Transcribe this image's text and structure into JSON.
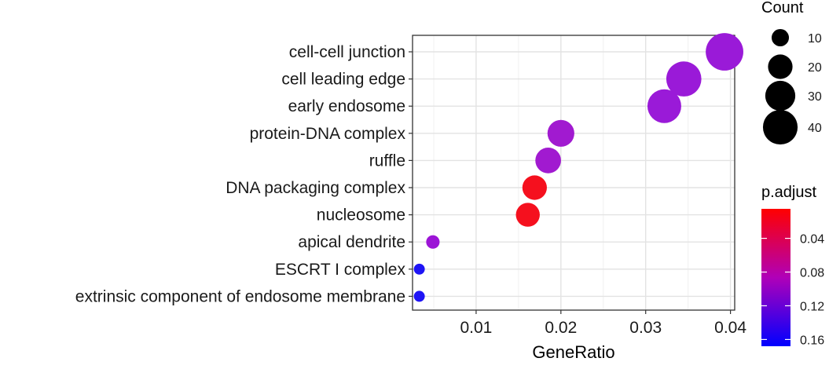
{
  "chart_data": {
    "type": "scatter",
    "xlabel": "GeneRatio",
    "ylabel": "",
    "xlim": [
      0.0025,
      0.0405
    ],
    "x_ticks": [
      0.01,
      0.02,
      0.03,
      0.04
    ],
    "x_tick_labels": [
      "0.01",
      "0.02",
      "0.03",
      "0.04"
    ],
    "grid": true,
    "points": [
      {
        "term": "cell-cell junction",
        "gene_ratio": 0.0393,
        "count": 47,
        "p_adjust": 0.12,
        "color": "#9a1ad8"
      },
      {
        "term": "cell leading edge",
        "gene_ratio": 0.0345,
        "count": 41,
        "p_adjust": 0.12,
        "color": "#9a1ad8"
      },
      {
        "term": "early endosome",
        "gene_ratio": 0.0322,
        "count": 38,
        "p_adjust": 0.12,
        "color": "#9a1ad8"
      },
      {
        "term": "protein-DNA complex",
        "gene_ratio": 0.02,
        "count": 24,
        "p_adjust": 0.115,
        "color": "#a11ad0"
      },
      {
        "term": "ruffle",
        "gene_ratio": 0.0185,
        "count": 22,
        "p_adjust": 0.115,
        "color": "#a11ad0"
      },
      {
        "term": "DNA packaging complex",
        "gene_ratio": 0.0169,
        "count": 20,
        "p_adjust": 0.02,
        "color": "#f5101e"
      },
      {
        "term": "nucleosome",
        "gene_ratio": 0.0161,
        "count": 19,
        "p_adjust": 0.02,
        "color": "#f5101e"
      },
      {
        "term": "apical dendrite",
        "gene_ratio": 0.0049,
        "count": 6,
        "p_adjust": 0.125,
        "color": "#9c14d6"
      },
      {
        "term": "ESCRT I complex",
        "gene_ratio": 0.0033,
        "count": 4,
        "p_adjust": 0.165,
        "color": "#1e14f5"
      },
      {
        "term": "extrinsic component of endosome membrane",
        "gene_ratio": 0.0033,
        "count": 4,
        "p_adjust": 0.165,
        "color": "#1e14f5"
      }
    ],
    "legend_size": {
      "title": "Count",
      "values": [
        10,
        20,
        30,
        40
      ],
      "labels": [
        "10",
        "20",
        "30",
        "40"
      ]
    },
    "legend_color": {
      "title": "p.adjust",
      "range": [
        0.005,
        0.168
      ],
      "ticks": [
        0.04,
        0.08,
        0.12,
        0.16
      ],
      "labels": [
        "0.04",
        "0.08",
        "0.12",
        "0.16"
      ],
      "low_color": "#ff0000",
      "high_color": "#0000ff"
    }
  }
}
